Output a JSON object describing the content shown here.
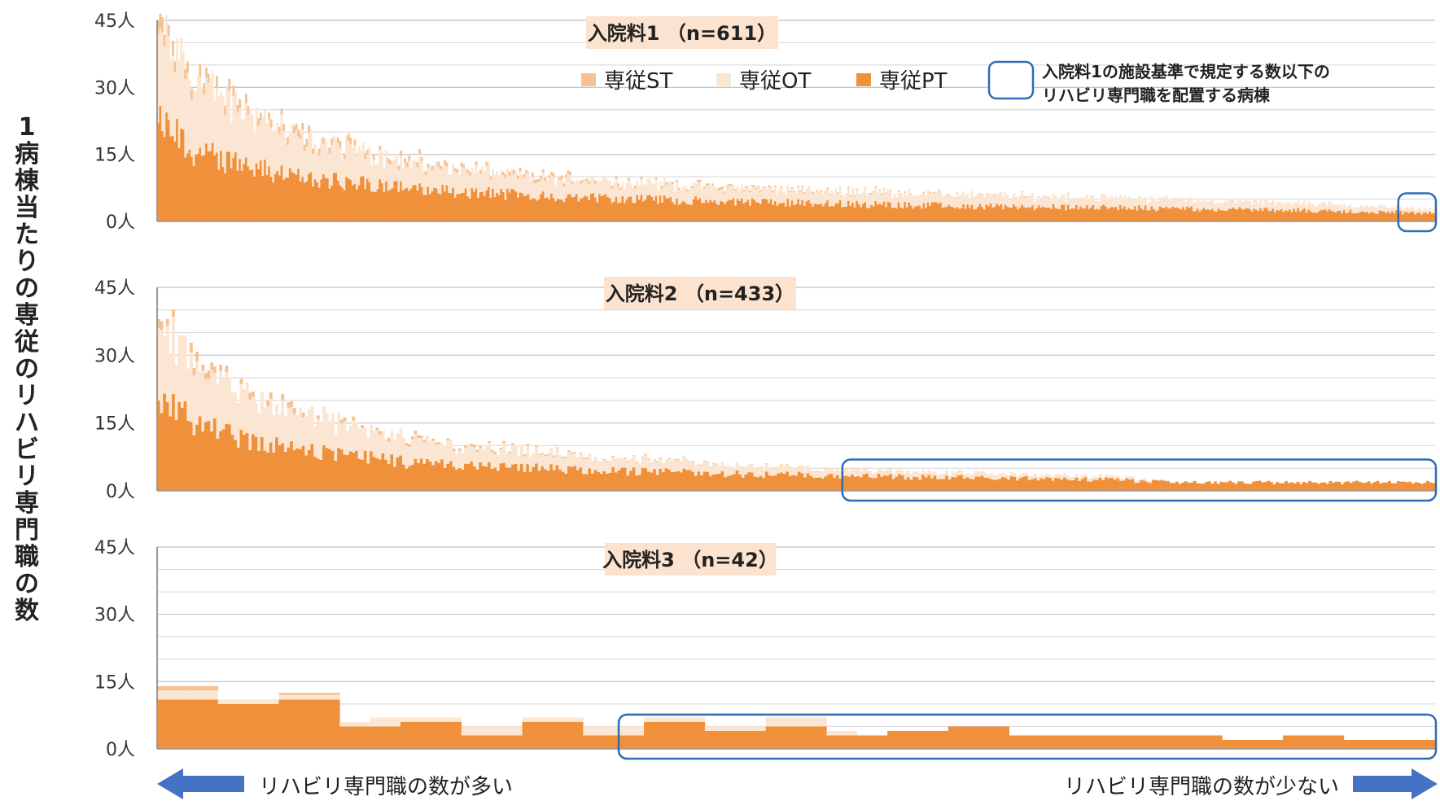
{
  "y_axis_label": "1病棟当たりの専従のリハビリ専門職の数",
  "colors": {
    "pt": "#f0903a",
    "ot": "#fbe6d3",
    "st": "#f7c291",
    "highlight": "#2e6cb5",
    "arrow": "#4472c4",
    "title_bg": "#fbe3cf"
  },
  "legend": {
    "st": "専従ST",
    "ot": "専従OT",
    "pt": "専従PT",
    "highlight_line1": "入院料1の施設基準で規定する数以下の",
    "highlight_line2": "リハビリ専門職を配置する病棟"
  },
  "arrows": {
    "left": "リハビリ専門職の数が多い",
    "right": "リハビリ専門職の数が少ない"
  },
  "chart_data": [
    {
      "type": "bar",
      "stacked": true,
      "title": "入院料1 （n=611）",
      "n": 611,
      "ylim": [
        0,
        45
      ],
      "yticks": [
        "0人",
        "15人",
        "30人",
        "45人"
      ],
      "grid": true,
      "x_order": "ranked by total specialist staff, descending",
      "highlight_range": [
        0.975,
        1.0
      ],
      "series": [
        {
          "name": "専従ST",
          "profile": [
            [
              0,
              3
            ],
            [
              0.03,
              2.5
            ],
            [
              0.1,
              1.5
            ],
            [
              0.25,
              0.8
            ],
            [
              0.5,
              0.3
            ],
            [
              0.7,
              0.1
            ],
            [
              1,
              0
            ]
          ]
        },
        {
          "name": "専従OT",
          "profile": [
            [
              0,
              20
            ],
            [
              0.03,
              15
            ],
            [
              0.1,
              9
            ],
            [
              0.2,
              5.5
            ],
            [
              0.3,
              4
            ],
            [
              0.45,
              3
            ],
            [
              0.6,
              2.5
            ],
            [
              0.75,
              2
            ],
            [
              0.9,
              1.6
            ],
            [
              1,
              0.8
            ]
          ]
        },
        {
          "name": "専従PT",
          "profile": [
            [
              0,
              22
            ],
            [
              0.03,
              15
            ],
            [
              0.1,
              10
            ],
            [
              0.2,
              7
            ],
            [
              0.3,
              5.5
            ],
            [
              0.45,
              4.3
            ],
            [
              0.6,
              3.5
            ],
            [
              0.75,
              3
            ],
            [
              0.9,
              2.4
            ],
            [
              1,
              1.8
            ]
          ]
        }
      ]
    },
    {
      "type": "bar",
      "stacked": true,
      "title": "入院料2 （n=433）",
      "n": 433,
      "ylim": [
        0,
        45
      ],
      "yticks": [
        "0人",
        "15人",
        "30人",
        "45人"
      ],
      "grid": true,
      "x_order": "ranked by total specialist staff, descending",
      "highlight_range": [
        0.54,
        1.0
      ],
      "series": [
        {
          "name": "専従ST",
          "profile": [
            [
              0,
              2
            ],
            [
              0.05,
              1.5
            ],
            [
              0.15,
              0.8
            ],
            [
              0.3,
              0.3
            ],
            [
              0.5,
              0.1
            ],
            [
              1,
              0
            ]
          ]
        },
        {
          "name": "専従OT",
          "profile": [
            [
              0,
              16
            ],
            [
              0.03,
              12
            ],
            [
              0.1,
              8
            ],
            [
              0.2,
              4.5
            ],
            [
              0.35,
              2.5
            ],
            [
              0.54,
              1.3
            ],
            [
              0.75,
              0.6
            ],
            [
              0.8,
              0
            ],
            [
              1,
              0
            ]
          ]
        },
        {
          "name": "専従PT",
          "profile": [
            [
              0,
              20
            ],
            [
              0.03,
              14
            ],
            [
              0.1,
              9
            ],
            [
              0.2,
              6
            ],
            [
              0.35,
              4.3
            ],
            [
              0.54,
              3.2
            ],
            [
              0.75,
              2.4
            ],
            [
              0.8,
              1.8
            ],
            [
              1,
              1.8
            ]
          ]
        }
      ]
    },
    {
      "type": "bar",
      "stacked": true,
      "title": "入院料3 （n=42）",
      "n": 42,
      "ylim": [
        0,
        45
      ],
      "yticks": [
        "0人",
        "15人",
        "30人",
        "45人"
      ],
      "grid": true,
      "x_order": "ranked by total specialist staff, descending",
      "highlight_range": [
        0.365,
        1.0
      ],
      "series": [
        {
          "name": "専従ST",
          "values": [
            1,
            1,
            0,
            0,
            0.5,
            0.5,
            0,
            0,
            0,
            0,
            0,
            0,
            0,
            0,
            0,
            0,
            0,
            0,
            0,
            0,
            0,
            0,
            0,
            0,
            0,
            0,
            0,
            0,
            0,
            0,
            0,
            0,
            0,
            0,
            0,
            0,
            0,
            0,
            0,
            0,
            0,
            0
          ]
        },
        {
          "name": "専従OT",
          "values": [
            2,
            2,
            1,
            1,
            1,
            1,
            1,
            2,
            1,
            1,
            2,
            2,
            1,
            1,
            2,
            2,
            1,
            1,
            1,
            1,
            2,
            2,
            1,
            0,
            0,
            0,
            0,
            0,
            0,
            0,
            0,
            0,
            0,
            0,
            0,
            0,
            0,
            0,
            0,
            0,
            0,
            0
          ]
        },
        {
          "name": "専従PT",
          "values": [
            11,
            11,
            10,
            10,
            11,
            11,
            5,
            5,
            6,
            6,
            3,
            3,
            6,
            6,
            3,
            3,
            6,
            6,
            4,
            4,
            5,
            5,
            3,
            3,
            4,
            4,
            5,
            5,
            3,
            3,
            3,
            3,
            3,
            3,
            3,
            2,
            2,
            3,
            3,
            2,
            2,
            2
          ]
        }
      ]
    }
  ]
}
